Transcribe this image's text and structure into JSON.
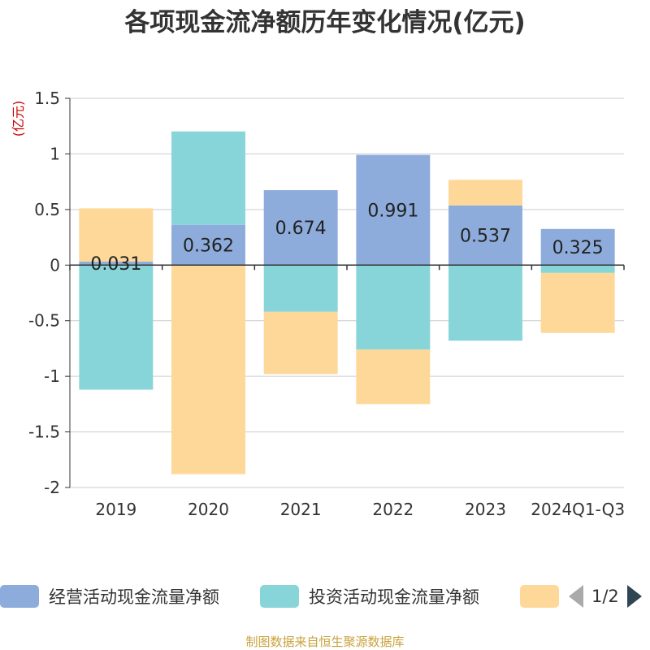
{
  "chart_data": {
    "type": "bar",
    "stacked": true,
    "title": "各项现金流净额历年变化情况(亿元)",
    "ylabel": "(亿元)",
    "xlabel": "",
    "ylim": [
      -2,
      1.5
    ],
    "yticks": [
      1.5,
      1,
      0.5,
      0,
      -0.5,
      -1,
      -1.5,
      -2
    ],
    "ytick_labels": [
      "1.5",
      "1",
      "0.5",
      "0",
      "-0.5",
      "-1",
      "-1.5",
      "-2"
    ],
    "grid": true,
    "legend_position": "bottom",
    "categories": [
      "2019",
      "2020",
      "2021",
      "2022",
      "2023",
      "2024Q1-Q3"
    ],
    "series": [
      {
        "name": "经营活动现金流量净额",
        "color": "#8eacdb",
        "values": [
          0.031,
          0.362,
          0.674,
          0.991,
          0.537,
          0.325
        ],
        "labels": [
          "0.031",
          "0.362",
          "0.674",
          "0.991",
          "0.537",
          "0.325"
        ]
      },
      {
        "name": "投资活动现金流量净额",
        "color": "#88d5d9",
        "values": [
          -1.12,
          0.84,
          -0.42,
          -0.76,
          -0.68,
          -0.07
        ],
        "labels": []
      },
      {
        "name": "",
        "color": "#fed898",
        "values": [
          0.48,
          -1.88,
          -0.56,
          -0.49,
          0.23,
          -0.54
        ],
        "labels": []
      }
    ]
  },
  "legend": {
    "page_indicator": "1/2"
  },
  "source_note": "制图数据来自恒生聚源数据库",
  "colors": {
    "axis": "#333333",
    "grid": "#cccccc",
    "ylabel": "#cc0000",
    "label_text": "#222222"
  }
}
